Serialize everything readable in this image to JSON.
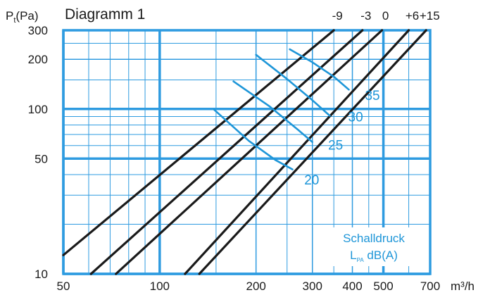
{
  "chart_data": {
    "type": "line",
    "title": "Diagramm 1",
    "ylabel_main": "P",
    "ylabel_sub": "t",
    "ylabel_unit": "(Pa)",
    "xlabel": "m³/h",
    "x_scale": "log",
    "y_scale": "log",
    "xlim": [
      50,
      700
    ],
    "ylim": [
      10,
      300
    ],
    "grid": true,
    "x_ticks": [
      {
        "value": 50,
        "label": "50"
      },
      {
        "value": 100,
        "label": "100"
      },
      {
        "value": 200,
        "label": "200"
      },
      {
        "value": 300,
        "label": "300"
      },
      {
        "value": 400,
        "label": "400"
      },
      {
        "value": 500,
        "label": "500"
      },
      {
        "value": 700,
        "label": "700"
      }
    ],
    "y_ticks": [
      {
        "value": 10,
        "label": "10"
      },
      {
        "value": 50,
        "label": "50"
      },
      {
        "value": 100,
        "label": "100"
      },
      {
        "value": 200,
        "label": "200"
      },
      {
        "value": 300,
        "label": "300"
      }
    ],
    "x_minor": [
      60,
      70,
      80,
      90,
      150,
      250,
      350,
      450,
      600
    ],
    "y_minor": [
      20,
      30,
      40,
      60,
      70,
      80,
      90,
      150,
      250
    ],
    "x_major": [
      50,
      100,
      500
    ],
    "y_major": [
      10,
      50,
      100
    ],
    "series": [
      {
        "name": "-9",
        "x": [
          50,
          350
        ],
        "y": [
          13,
          300
        ]
      },
      {
        "name": "-3",
        "x": [
          61,
          430
        ],
        "y": [
          10,
          300
        ]
      },
      {
        "name": "0",
        "x": [
          73,
          495
        ],
        "y": [
          10,
          300
        ]
      },
      {
        "name": "+6",
        "x": [
          120,
          600
        ],
        "y": [
          10,
          300
        ]
      },
      {
        "name": "+15",
        "x": [
          133,
          680
        ],
        "y": [
          10,
          300
        ]
      }
    ],
    "curves": [
      {
        "name": "20",
        "label_at": [
          283,
          37
        ],
        "x": [
          148,
          190,
          230,
          260
        ],
        "y": [
          99,
          64,
          49,
          43
        ]
      },
      {
        "name": "25",
        "label_at": [
          336,
          60
        ],
        "x": [
          170,
          220,
          270,
          300
        ],
        "y": [
          147,
          104,
          75,
          63
        ]
      },
      {
        "name": "30",
        "label_at": [
          388,
          89
        ],
        "x": [
          200,
          250,
          300,
          340
        ],
        "y": [
          213,
          152,
          113,
          91
        ]
      },
      {
        "name": "35",
        "label_at": [
          438,
          120
        ],
        "x": [
          255,
          300,
          350,
          390
        ],
        "y": [
          230,
          192,
          157,
          131
        ]
      }
    ],
    "annotation": {
      "line1": "Schalldruck",
      "line2_main": "L",
      "line2_sub": "PA",
      "line2_rest": " dB(A)"
    },
    "colors": {
      "grid": "#2e9be0",
      "line": "#1a1a1a",
      "curve": "#1e96d8",
      "text": "#1a1a1a",
      "curve_text": "#1e96d8"
    }
  }
}
